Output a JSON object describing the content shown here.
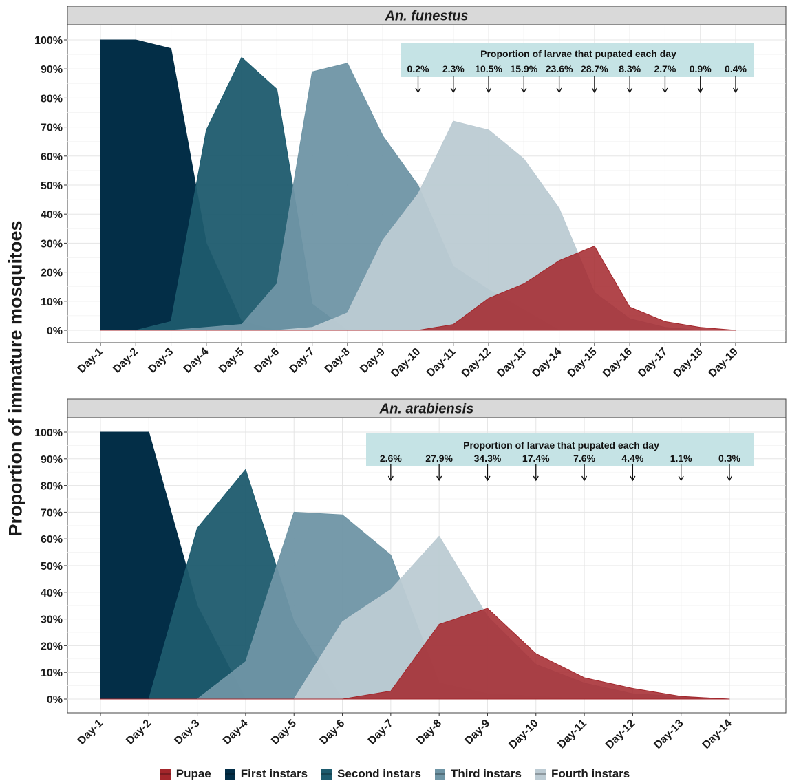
{
  "ylabel": "Proportion of immature mosquitoes",
  "legend": [
    {
      "name": "Pupae",
      "color": "#a3262b"
    },
    {
      "name": "First instars",
      "color": "#032e47"
    },
    {
      "name": "Second instars",
      "color": "#1d5b6e"
    },
    {
      "name": "Third instars",
      "color": "#6f95a5"
    },
    {
      "name": "Fourth instars",
      "color": "#bccbd3"
    }
  ],
  "y_ticks": [
    "0%",
    "10%",
    "20%",
    "30%",
    "40%",
    "50%",
    "60%",
    "70%",
    "80%",
    "90%",
    "100%"
  ],
  "chart_data": [
    {
      "type": "area",
      "title": "An. funestus",
      "xlabel": "",
      "ylabel": "Proportion of immature mosquitoes",
      "ylim": [
        0,
        100
      ],
      "grid": true,
      "categories": [
        "Day-1",
        "Day-2",
        "Day-3",
        "Day-4",
        "Day-5",
        "Day-6",
        "Day-7",
        "Day-8",
        "Day-9",
        "Day-10",
        "Day-11",
        "Day-12",
        "Day-13",
        "Day-14",
        "Day-15",
        "Day-16",
        "Day-17",
        "Day-18",
        "Day-19"
      ],
      "series": [
        {
          "name": "First instars",
          "values": [
            100,
            100,
            97,
            30,
            3,
            0,
            0,
            0,
            0,
            0,
            0,
            0,
            0,
            0,
            0,
            0,
            0,
            0,
            0
          ]
        },
        {
          "name": "Second instars",
          "values": [
            0,
            0,
            3,
            69,
            94,
            83,
            9,
            0,
            0,
            0,
            0,
            0,
            0,
            0,
            0,
            0,
            0,
            0,
            0
          ]
        },
        {
          "name": "Third instars",
          "values": [
            0,
            0,
            0,
            1,
            2,
            16,
            89,
            92,
            67,
            50,
            22,
            14,
            7,
            0,
            0,
            0,
            0,
            0,
            0
          ]
        },
        {
          "name": "Fourth instars",
          "values": [
            0,
            0,
            0,
            0,
            0,
            0,
            1,
            6,
            31,
            47,
            72,
            69,
            59,
            42,
            13,
            4,
            1,
            0,
            0
          ]
        },
        {
          "name": "Pupae",
          "values": [
            0,
            0,
            0,
            0,
            0,
            0,
            0,
            0,
            0,
            0,
            2,
            11,
            16,
            24,
            29,
            8,
            3,
            1,
            0
          ]
        }
      ],
      "annotation": {
        "title": "Proportion of larvae that pupated each day",
        "day_index": [
          9,
          10,
          11,
          12,
          13,
          14,
          15,
          16,
          17,
          18
        ],
        "labels": [
          "0.2%",
          "2.3%",
          "10.5%",
          "15.9%",
          "23.6%",
          "28.7%",
          "8.3%",
          "2.7%",
          "0.9%",
          "0.4%"
        ]
      }
    },
    {
      "type": "area",
      "title": "An. arabiensis",
      "xlabel": "",
      "ylabel": "Proportion of immature mosquitoes",
      "ylim": [
        0,
        100
      ],
      "grid": true,
      "categories": [
        "Day-1",
        "Day-2",
        "Day-3",
        "Day-4",
        "Day-5",
        "Day-6",
        "Day-7",
        "Day-8",
        "Day-9",
        "Day-10",
        "Day-11",
        "Day-12",
        "Day-13",
        "Day-14"
      ],
      "series": [
        {
          "name": "First instars",
          "values": [
            100,
            100,
            35,
            0,
            0,
            0,
            0,
            0,
            0,
            0,
            0,
            0,
            0,
            0
          ]
        },
        {
          "name": "Second instars",
          "values": [
            0,
            0,
            64,
            86,
            29,
            0,
            0,
            0,
            0,
            0,
            0,
            0,
            0,
            0
          ]
        },
        {
          "name": "Third instars",
          "values": [
            0,
            0,
            0,
            14,
            70,
            69,
            54,
            6,
            2,
            1,
            0,
            0,
            0,
            0
          ]
        },
        {
          "name": "Fourth instars",
          "values": [
            0,
            0,
            0,
            0,
            0,
            29,
            41,
            61,
            31,
            13,
            6,
            2,
            1,
            0
          ]
        },
        {
          "name": "Pupae",
          "values": [
            0,
            0,
            0,
            0,
            0,
            0,
            3,
            28,
            34,
            17,
            8,
            4,
            1,
            0
          ]
        }
      ],
      "annotation": {
        "title": "Proportion of larvae that pupated each day",
        "day_index": [
          6,
          7,
          8,
          9,
          10,
          11,
          12,
          13
        ],
        "labels": [
          "2.6%",
          "27.9%",
          "34.3%",
          "17.4%",
          "7.6%",
          "4.4%",
          "1.1%",
          "0.3%"
        ]
      }
    }
  ]
}
